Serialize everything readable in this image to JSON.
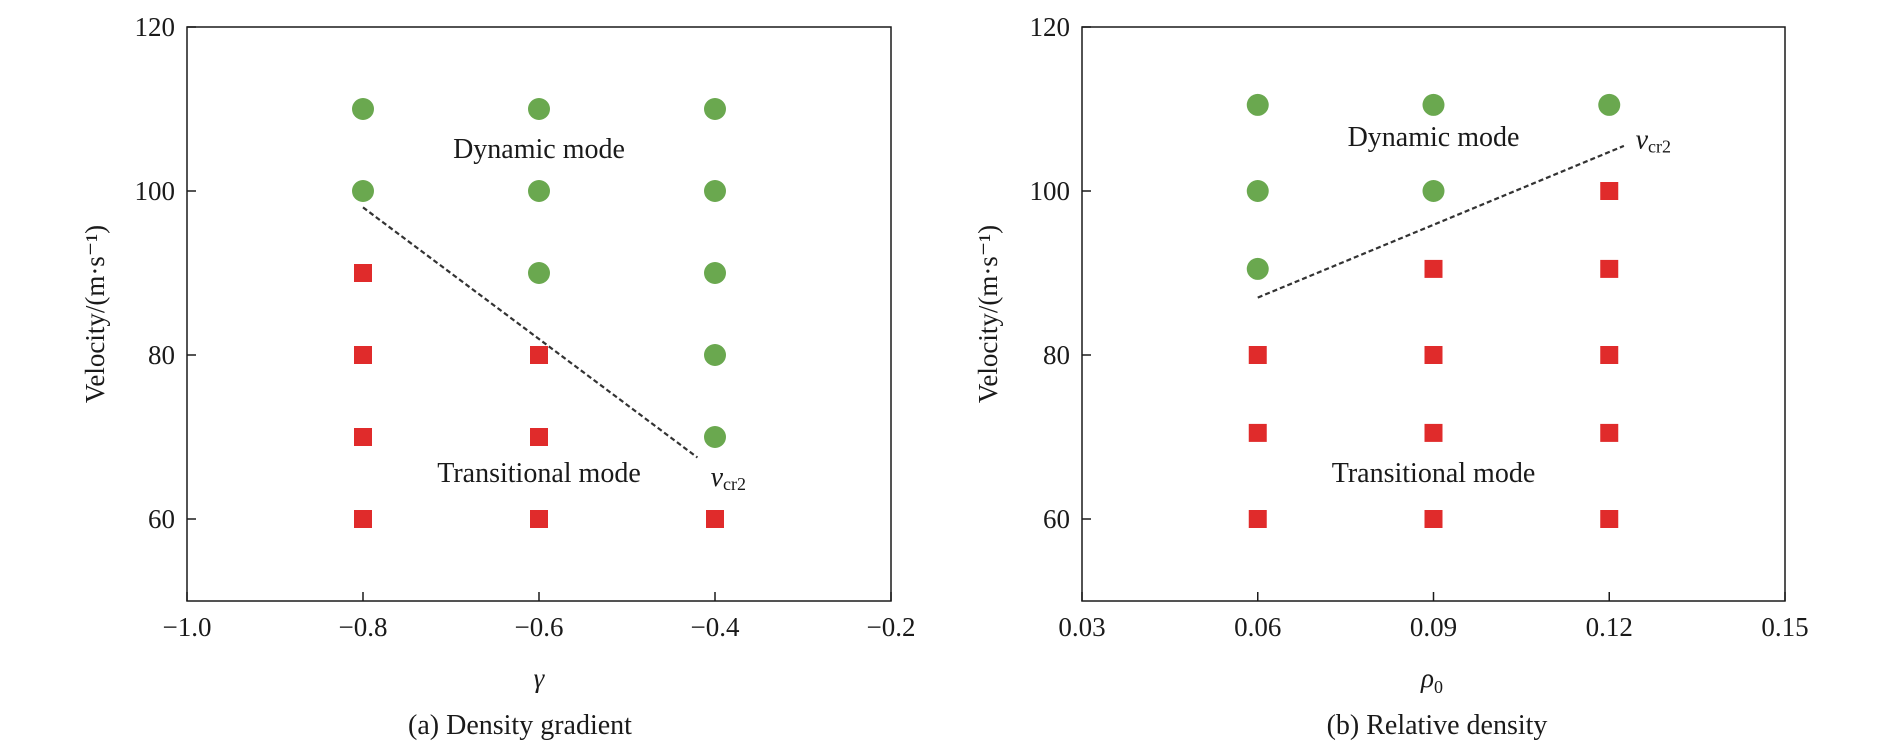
{
  "chart_data": [
    {
      "type": "scatter",
      "caption": "(a) Density gradient",
      "xlabel": "γ",
      "ylabel": "Velocity/(m·s⁻¹)",
      "xlim": [
        -1.0,
        -0.2
      ],
      "ylim": [
        50,
        120
      ],
      "xticks": [
        -1.0,
        -0.8,
        -0.6,
        -0.4,
        -0.2
      ],
      "xtick_labels": [
        "−1.0",
        "−0.8",
        "−0.6",
        "−0.4",
        "−0.2"
      ],
      "yticks": [
        60,
        80,
        100,
        120
      ],
      "ytick_labels": [
        "60",
        "80",
        "100",
        "120"
      ],
      "grid": false,
      "series": [
        {
          "marker": "circle",
          "color": "#6aa84f",
          "points": [
            [
              -0.8,
              110
            ],
            [
              -0.6,
              110
            ],
            [
              -0.4,
              110
            ],
            [
              -0.8,
              100
            ],
            [
              -0.6,
              100
            ],
            [
              -0.4,
              100
            ],
            [
              -0.6,
              90
            ],
            [
              -0.4,
              90
            ],
            [
              -0.4,
              80
            ],
            [
              -0.4,
              70
            ]
          ]
        },
        {
          "marker": "square",
          "color": "#e02b2b",
          "points": [
            [
              -0.8,
              90
            ],
            [
              -0.8,
              80
            ],
            [
              -0.6,
              80
            ],
            [
              -0.8,
              70
            ],
            [
              -0.6,
              70
            ],
            [
              -0.8,
              60
            ],
            [
              -0.6,
              60
            ],
            [
              -0.4,
              60
            ]
          ]
        }
      ],
      "boundary_line": {
        "label_main": "v",
        "label_sub": "cr2",
        "style": "dashed",
        "from": [
          -0.8,
          98
        ],
        "to": [
          -0.42,
          67.5
        ],
        "label_at": [
          -0.405,
          64
        ]
      },
      "annotations": [
        {
          "text": "Dynamic mode",
          "at": [
            -0.6,
            104
          ]
        },
        {
          "text": "Transitional mode",
          "at": [
            -0.6,
            64.5
          ]
        }
      ]
    },
    {
      "type": "scatter",
      "caption": "(b) Relative density",
      "xlabel_main": "ρ",
      "xlabel_sub": "0",
      "ylabel": "Velocity/(m·s⁻¹)",
      "xlim": [
        0.03,
        0.15
      ],
      "ylim": [
        50,
        120
      ],
      "xticks": [
        0.03,
        0.06,
        0.09,
        0.12,
        0.15
      ],
      "xtick_labels": [
        "0.03",
        "0.06",
        "0.09",
        "0.12",
        "0.15"
      ],
      "yticks": [
        60,
        80,
        100,
        120
      ],
      "ytick_labels": [
        "60",
        "80",
        "100",
        "120"
      ],
      "grid": false,
      "series": [
        {
          "marker": "circle",
          "color": "#6aa84f",
          "points": [
            [
              0.06,
              110.5
            ],
            [
              0.09,
              110.5
            ],
            [
              0.12,
              110.5
            ],
            [
              0.06,
              100
            ],
            [
              0.09,
              100
            ],
            [
              0.06,
              90.5
            ]
          ]
        },
        {
          "marker": "square",
          "color": "#e02b2b",
          "points": [
            [
              0.12,
              100
            ],
            [
              0.09,
              90.5
            ],
            [
              0.12,
              90.5
            ],
            [
              0.06,
              80
            ],
            [
              0.09,
              80
            ],
            [
              0.12,
              80
            ],
            [
              0.06,
              70.5
            ],
            [
              0.09,
              70.5
            ],
            [
              0.12,
              70.5
            ],
            [
              0.06,
              60
            ],
            [
              0.09,
              60
            ],
            [
              0.12,
              60
            ]
          ]
        }
      ],
      "boundary_line": {
        "label_main": "v",
        "label_sub": "cr2",
        "style": "dashed",
        "from": [
          0.06,
          87
        ],
        "to": [
          0.1225,
          105.5
        ],
        "label_at": [
          0.1245,
          105.2
        ]
      },
      "annotations": [
        {
          "text": "Dynamic mode",
          "at": [
            0.09,
            105.5
          ]
        },
        {
          "text": "Transitional mode",
          "at": [
            0.09,
            64.5
          ]
        }
      ]
    }
  ]
}
